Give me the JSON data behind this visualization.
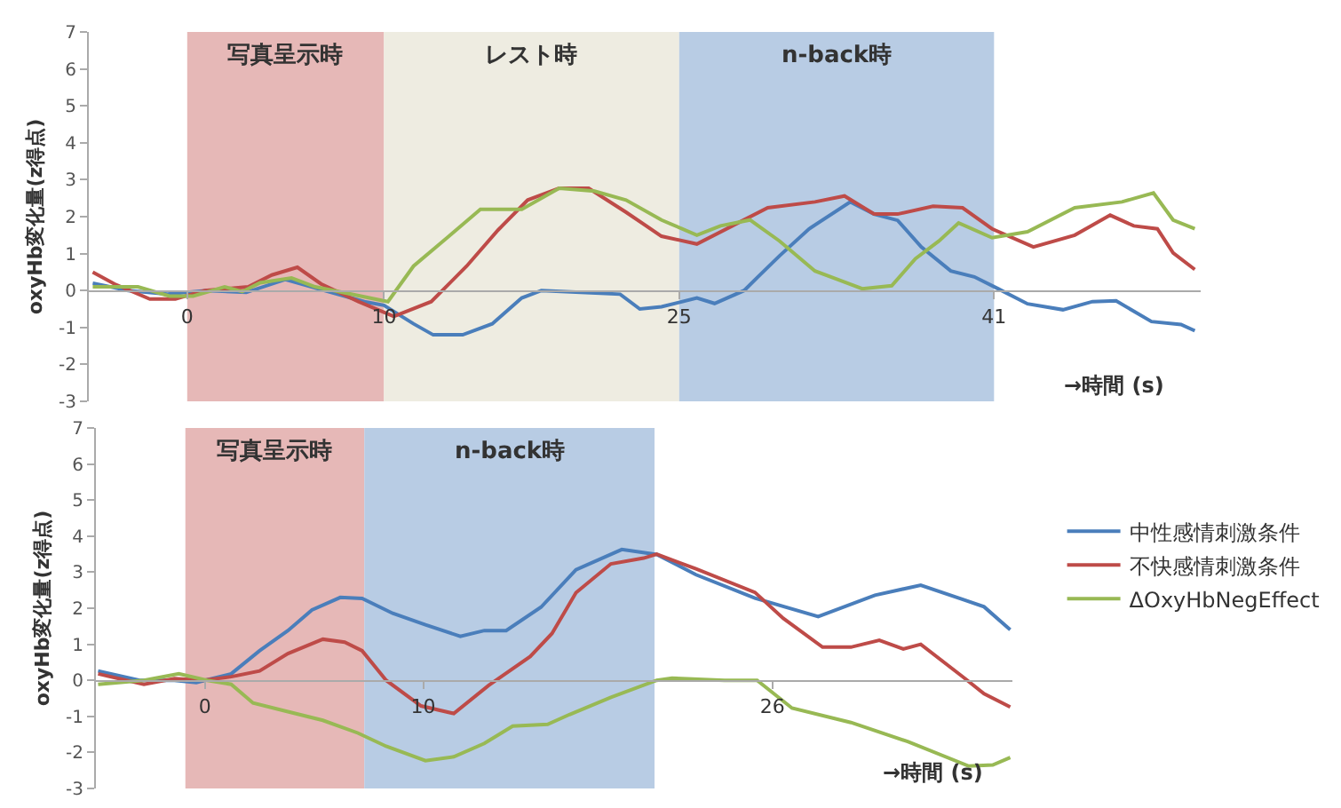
{
  "chart_data": [
    {
      "type": "line",
      "ylabel": "oxyHb変化量(z得点)",
      "xlabel": "→時間 (s)",
      "xlim": [
        -5,
        51.5
      ],
      "xticks": [
        0,
        10,
        25,
        41
      ],
      "ylim": [
        -3,
        7
      ],
      "yticks": [
        -3,
        -2,
        -1,
        0,
        1,
        2,
        3,
        4,
        5,
        6,
        7
      ],
      "grid": false,
      "legend": false,
      "bands": [
        {
          "axis": "x",
          "from": 0,
          "to": 10,
          "label": "写真呈示時",
          "color": "#e6b8b7"
        },
        {
          "axis": "x",
          "from": 10,
          "to": 25,
          "label": "レスト時",
          "color": "#eeece1"
        },
        {
          "axis": "x",
          "from": 25,
          "to": 41,
          "label": "n-back時",
          "color": "#b8cce4"
        }
      ],
      "series": [
        {
          "color": "#4a7ebb",
          "x": [
            -4.8,
            -3,
            -1,
            1,
            3,
            5,
            7,
            9,
            10,
            11.5,
            12.5,
            14,
            15.5,
            17,
            18,
            20,
            22,
            23,
            24.1,
            25.9,
            26.8,
            28.3,
            29,
            30.1,
            31.6,
            33.7,
            34.9,
            36.1,
            37.3,
            38.8,
            40,
            41.2,
            42.7,
            44.5,
            46,
            47.2,
            49,
            50.5,
            51.2
          ],
          "values": [
            0.2,
            0,
            -0.1,
            0,
            -0.05,
            0.3,
            0,
            -0.3,
            -0.4,
            -0.9,
            -1.2,
            -1.2,
            -0.9,
            -0.2,
            0,
            -0.05,
            -0.1,
            -0.5,
            -0.44,
            -0.2,
            -0.35,
            0,
            0.37,
            0.94,
            1.67,
            2.4,
            2.07,
            1.9,
            1.18,
            0.53,
            0.37,
            0.05,
            -0.36,
            -0.52,
            -0.3,
            -0.28,
            -0.84,
            -0.92,
            -1.09
          ]
        },
        {
          "color": "#be4b48",
          "x": [
            -4.8,
            -3.7,
            -1.9,
            -0.6,
            0.9,
            3.1,
            4.3,
            5.6,
            6.8,
            8.7,
            10.5,
            12.4,
            14.2,
            15.8,
            17.3,
            18.9,
            20.4,
            22.3,
            24.1,
            25.9,
            27.7,
            29.5,
            31.9,
            33.4,
            34.9,
            36.1,
            37.9,
            39.4,
            40.9,
            43,
            45.1,
            46.9,
            48.1,
            49.3,
            50.1,
            51.2
          ],
          "values": [
            0.5,
            0.18,
            -0.23,
            -0.23,
            0,
            0.1,
            0.42,
            0.63,
            0.18,
            -0.3,
            -0.7,
            -0.3,
            0.66,
            1.64,
            2.45,
            2.77,
            2.77,
            2.12,
            1.47,
            1.26,
            1.75,
            2.24,
            2.4,
            2.56,
            2.07,
            2.07,
            2.28,
            2.24,
            1.67,
            1.18,
            1.5,
            2.04,
            1.75,
            1.67,
            1.02,
            0.57
          ]
        },
        {
          "color": "#98b954",
          "x": [
            -4.8,
            -2.5,
            -0.9,
            0.3,
            1.9,
            2.8,
            3.7,
            5.3,
            6.5,
            8,
            10.2,
            11.5,
            13.3,
            14.9,
            17,
            18.9,
            20.7,
            22.3,
            24.1,
            25.9,
            27.1,
            28.6,
            30.1,
            31.9,
            33.1,
            34.3,
            35.8,
            37,
            38.2,
            39.2,
            40.9,
            42.7,
            45.1,
            47.5,
            49.1,
            50.1,
            51.2
          ],
          "values": [
            0.1,
            0.1,
            -0.15,
            -0.15,
            0.1,
            -0.03,
            0.21,
            0.34,
            0.1,
            -0.06,
            -0.3,
            0.66,
            1.47,
            2.2,
            2.2,
            2.77,
            2.69,
            2.45,
            1.91,
            1.5,
            1.75,
            1.91,
            1.34,
            0.53,
            0.29,
            0.05,
            0.13,
            0.86,
            1.34,
            1.83,
            1.43,
            1.59,
            2.24,
            2.4,
            2.64,
            1.91,
            1.67
          ]
        }
      ]
    },
    {
      "type": "line",
      "ylabel": "oxyHb変化量(z得点)",
      "xlabel": "→時間 (s)",
      "xlim": [
        -5,
        37
      ],
      "xticks": [
        0,
        10,
        26
      ],
      "ylim": [
        -3,
        7
      ],
      "yticks": [
        -3,
        -2,
        -1,
        0,
        1,
        2,
        3,
        4,
        5,
        6,
        7
      ],
      "grid": false,
      "legend": "right",
      "bands": [
        {
          "axis": "x",
          "from": -0.9,
          "to": 7.3,
          "label": "写真呈示時",
          "color": "#e6b8b7"
        },
        {
          "axis": "x",
          "from": 7.3,
          "to": 20.6,
          "label": "n-back時",
          "color": "#b8cce4"
        }
      ],
      "series": [
        {
          "name": "中性感情刺激条件",
          "color": "#4a7ebb",
          "x": [
            -4.9,
            -3,
            -1.4,
            -0.4,
            1.2,
            2.5,
            3.8,
            4.9,
            6.2,
            7.2,
            8.6,
            10.1,
            11.7,
            12.8,
            13.8,
            15.4,
            17,
            19.1,
            20.7,
            22.5,
            25.2,
            28.1,
            30.7,
            32.8,
            34.7,
            35.7,
            36.9
          ],
          "values": [
            0.26,
            0,
            0,
            -0.06,
            0.18,
            0.82,
            1.38,
            1.95,
            2.3,
            2.27,
            1.86,
            1.54,
            1.22,
            1.38,
            1.38,
            2.03,
            3.07,
            3.63,
            3.49,
            2.93,
            2.28,
            1.77,
            2.36,
            2.64,
            2.25,
            2.04,
            1.4
          ]
        },
        {
          "name": "不快感情刺激条件",
          "color": "#be4b48",
          "x": [
            -4.9,
            -2.8,
            -1.4,
            -0.1,
            1.2,
            2.5,
            3.8,
            5.4,
            6.4,
            7.2,
            8.3,
            9.9,
            11.4,
            13,
            14.9,
            15.9,
            17,
            18.6,
            20.1,
            20.7,
            22.5,
            25.2,
            26.5,
            28.3,
            29.6,
            30.9,
            32,
            32.8,
            34.7,
            35.7,
            36.9
          ],
          "values": [
            0.18,
            -0.11,
            0.05,
            0,
            0.1,
            0.26,
            0.74,
            1.14,
            1.06,
            0.82,
            0,
            -0.71,
            -0.92,
            -0.14,
            0.66,
            1.3,
            2.43,
            3.23,
            3.39,
            3.5,
            3.09,
            2.44,
            1.72,
            0.92,
            0.92,
            1.11,
            0.87,
            1,
            0.11,
            -0.37,
            -0.74
          ]
        },
        {
          "name": "ΔOxyHbNegEffect",
          "color": "#98b954",
          "x": [
            -4.9,
            -2.8,
            -1.2,
            0.1,
            1.2,
            2.2,
            3.8,
            5.4,
            7,
            8.3,
            10.1,
            11.4,
            12.8,
            14.1,
            15.7,
            16.7,
            18.6,
            20.7,
            21.4,
            23.8,
            25.3,
            26.9,
            29.6,
            32.2,
            35,
            36.1,
            36.9
          ],
          "values": [
            -0.11,
            0,
            0.18,
            0,
            -0.11,
            -0.63,
            -0.87,
            -1.11,
            -1.46,
            -1.83,
            -2.23,
            -2.12,
            -1.75,
            -1.27,
            -1.22,
            -0.95,
            -0.47,
            0,
            0.06,
            0,
            0,
            -0.77,
            -1.17,
            -1.7,
            -2.38,
            -2.35,
            -2.14
          ]
        }
      ]
    }
  ]
}
